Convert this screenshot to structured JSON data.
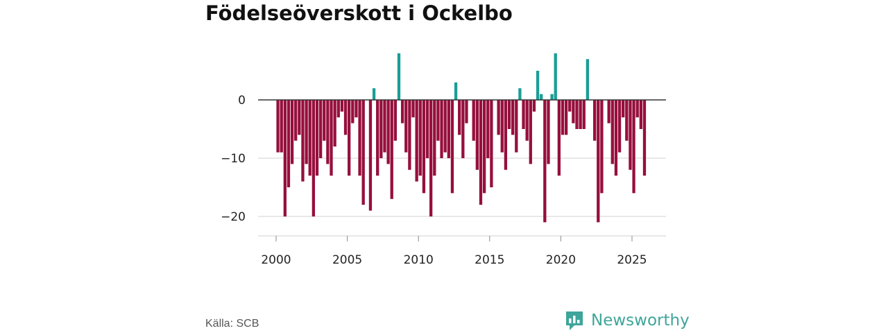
{
  "title": "Födelseöverskott i Ockelbo",
  "source": "Källa: SCB",
  "brand": {
    "name": "Newsworthy",
    "icon": "newsworthy-logo-icon"
  },
  "colors": {
    "positive": "#1a9e96",
    "negative": "#960f3c",
    "grid": "#d9d9d9",
    "zero_line": "#333333",
    "brand": "#3fa59a"
  },
  "chart_data": {
    "type": "bar",
    "title": "Födelseöverskott i Ockelbo",
    "xlabel": "",
    "ylabel": "",
    "x_ticks": [
      2000,
      2005,
      2010,
      2015,
      2020,
      2025
    ],
    "y_ticks": [
      0,
      -10,
      -20
    ],
    "y_tick_labels": [
      "0",
      "−10",
      "−20"
    ],
    "xlim": [
      1999.0,
      2027.5
    ],
    "ylim": [
      -23.5,
      8
    ],
    "grid": true,
    "bar_period": "quarter",
    "start": 2000.0,
    "values": [
      -9,
      -9,
      -20,
      -15,
      -11,
      -7,
      -6,
      -14,
      -11,
      -13,
      -20,
      -13,
      -10,
      -7,
      -11,
      -13,
      -8,
      -3,
      -2,
      -6,
      -13,
      -4,
      -3,
      -13,
      -18,
      0,
      -19,
      2,
      -13,
      -10,
      -9,
      -11,
      -17,
      -7,
      8,
      -4,
      -9,
      -12,
      -3,
      -14,
      -13,
      -16,
      -10,
      -20,
      -13,
      -7,
      -10,
      -9,
      -10,
      -16,
      3,
      -6,
      -10,
      -4,
      0,
      -7,
      -12,
      -18,
      -16,
      -10,
      -15,
      0,
      -6,
      -9,
      -12,
      -5,
      -6,
      -9,
      2,
      -5,
      -7,
      -11,
      -2,
      5,
      1,
      -21,
      -11,
      1,
      8,
      -13,
      -6,
      -6,
      -2,
      -4,
      -5,
      -5,
      -5,
      7,
      0,
      -7,
      -21,
      -16,
      0,
      -4,
      -11,
      -13,
      -9,
      -3,
      -7,
      -12,
      -16,
      -3,
      -5,
      -13
    ]
  }
}
